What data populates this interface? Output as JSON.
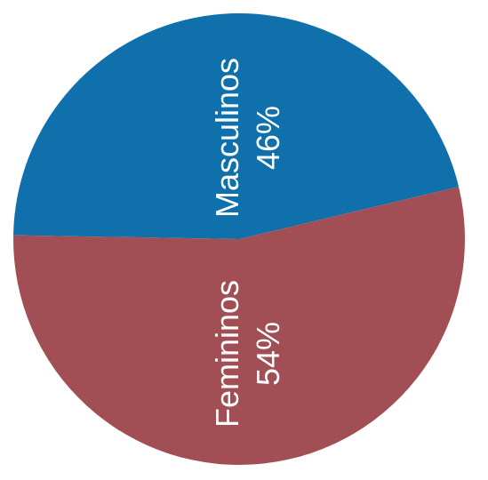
{
  "chart_data": {
    "type": "pie",
    "title": "",
    "slices": [
      {
        "label": "Masculinos",
        "value": 46,
        "value_label": "46%",
        "color": "#1070ac"
      },
      {
        "label": "Femininos",
        "value": 54,
        "value_label": "54%",
        "color": "#a14f55"
      }
    ],
    "legend": "none",
    "data_labels": "inside-rotated"
  }
}
